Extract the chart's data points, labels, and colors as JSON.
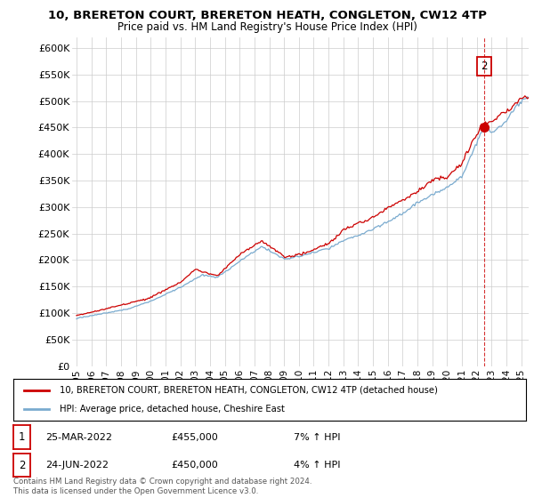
{
  "title": "10, BRERETON COURT, BRERETON HEATH, CONGLETON, CW12 4TP",
  "subtitle": "Price paid vs. HM Land Registry's House Price Index (HPI)",
  "ylabel_ticks": [
    "£0",
    "£50K",
    "£100K",
    "£150K",
    "£200K",
    "£250K",
    "£300K",
    "£350K",
    "£400K",
    "£450K",
    "£500K",
    "£550K",
    "£600K"
  ],
  "ytick_values": [
    0,
    50000,
    100000,
    150000,
    200000,
    250000,
    300000,
    350000,
    400000,
    450000,
    500000,
    550000,
    600000
  ],
  "ylim": [
    0,
    620000
  ],
  "xlim_start": 1994.7,
  "xlim_end": 2025.5,
  "xtick_years": [
    1995,
    1996,
    1997,
    1998,
    1999,
    2000,
    2001,
    2002,
    2003,
    2004,
    2005,
    2006,
    2007,
    2008,
    2009,
    2010,
    2011,
    2012,
    2013,
    2014,
    2015,
    2016,
    2017,
    2018,
    2019,
    2020,
    2021,
    2022,
    2023,
    2024,
    2025
  ],
  "legend_red": "10, BRERETON COURT, BRERETON HEATH, CONGLETON, CW12 4TP (detached house)",
  "legend_blue": "HPI: Average price, detached house, Cheshire East",
  "annotation1_label": "1",
  "annotation1_date": "25-MAR-2022",
  "annotation1_price": "£455,000",
  "annotation1_hpi": "7% ↑ HPI",
  "annotation1_year": 2022.23,
  "annotation1_value": 455000,
  "annotation2_label": "2",
  "annotation2_date": "24-JUN-2022",
  "annotation2_price": "£450,000",
  "annotation2_hpi": "4% ↑ HPI",
  "annotation2_year": 2022.48,
  "annotation2_value": 450000,
  "footer": "Contains HM Land Registry data © Crown copyright and database right 2024.\nThis data is licensed under the Open Government Licence v3.0.",
  "red_color": "#cc0000",
  "blue_color": "#7aabcf",
  "dashed_red": "#cc0000",
  "background_color": "#ffffff",
  "grid_color": "#cccccc"
}
